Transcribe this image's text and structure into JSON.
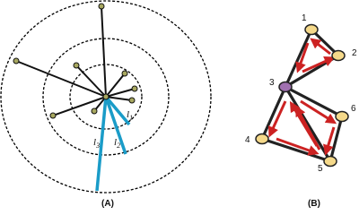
{
  "panels": {
    "a": "(A)",
    "b": "(B)"
  },
  "nodes": [
    "1",
    "2",
    "3",
    "4",
    "5",
    "6"
  ],
  "distances": [
    {
      "symbol": "l",
      "subscript": "1"
    },
    {
      "symbol": "l",
      "subscript": "2"
    },
    {
      "symbol": "l",
      "subscript": "3"
    }
  ]
}
